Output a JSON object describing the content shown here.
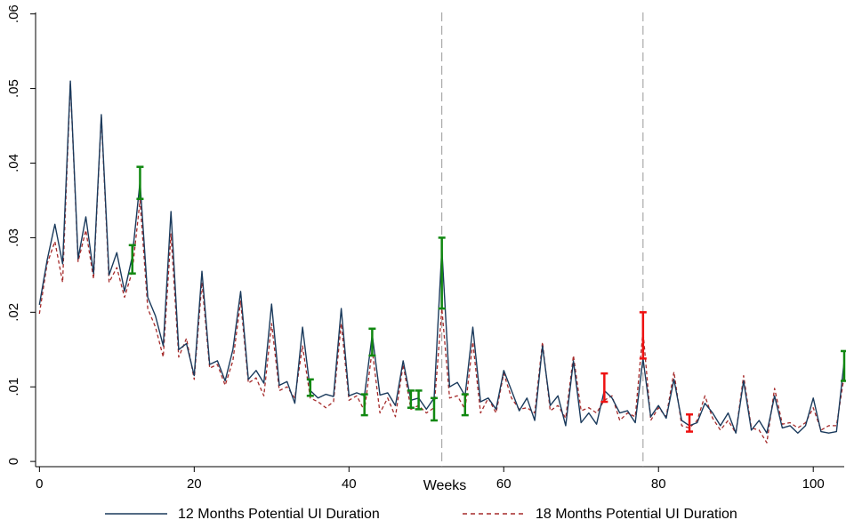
{
  "chart_data": {
    "type": "line",
    "xlabel": "Weeks",
    "ylabel": "",
    "xlim": [
      -0.5,
      104
    ],
    "ylim": [
      -0.0007,
      0.0602
    ],
    "x_ticks": [
      0,
      20,
      40,
      60,
      80,
      100
    ],
    "x_tick_labels": [
      "0",
      "20",
      "40",
      "60",
      "80",
      "100"
    ],
    "y_ticks": [
      0,
      0.01,
      0.02,
      0.03,
      0.04,
      0.05,
      0.06
    ],
    "y_tick_labels": [
      "0",
      ".01",
      ".02",
      ".03",
      ".04",
      ".05",
      ".06"
    ],
    "reference_lines_x": [
      52,
      78
    ],
    "grid": false,
    "legend_position": "bottom",
    "series": [
      {
        "name": "12 Months Potential UI Duration",
        "color": "#1a3a5c",
        "style": "solid",
        "x": [
          0,
          1,
          2,
          3,
          4,
          5,
          6,
          7,
          8,
          9,
          10,
          11,
          12,
          13,
          14,
          15,
          16,
          17,
          18,
          19,
          20,
          21,
          22,
          23,
          24,
          25,
          26,
          27,
          28,
          29,
          30,
          31,
          32,
          33,
          34,
          35,
          36,
          37,
          38,
          39,
          40,
          41,
          42,
          43,
          44,
          45,
          46,
          47,
          48,
          49,
          50,
          51,
          52,
          53,
          54,
          55,
          56,
          57,
          58,
          59,
          60,
          61,
          62,
          63,
          64,
          65,
          66,
          67,
          68,
          69,
          70,
          71,
          72,
          73,
          74,
          75,
          76,
          77,
          78,
          79,
          80,
          81,
          82,
          83,
          84,
          85,
          86,
          87,
          88,
          89,
          90,
          91,
          92,
          93,
          94,
          95,
          96,
          97,
          98,
          99,
          100,
          101,
          102,
          103,
          104
        ],
        "y": [
          0.021,
          0.027,
          0.0318,
          0.0265,
          0.051,
          0.0272,
          0.0328,
          0.0252,
          0.0465,
          0.025,
          0.028,
          0.0228,
          0.0275,
          0.0375,
          0.022,
          0.0195,
          0.0155,
          0.0335,
          0.015,
          0.0158,
          0.0115,
          0.0255,
          0.013,
          0.0135,
          0.0108,
          0.015,
          0.0228,
          0.011,
          0.0122,
          0.0105,
          0.0211,
          0.0102,
          0.0107,
          0.0078,
          0.018,
          0.0095,
          0.0085,
          0.009,
          0.0087,
          0.0205,
          0.0088,
          0.0092,
          0.0088,
          0.017,
          0.0089,
          0.0092,
          0.0075,
          0.0135,
          0.0082,
          0.0085,
          0.007,
          0.0085,
          0.0285,
          0.01,
          0.0106,
          0.0088,
          0.018,
          0.008,
          0.0085,
          0.007,
          0.0122,
          0.0095,
          0.0068,
          0.0085,
          0.0055,
          0.0155,
          0.0075,
          0.0088,
          0.0048,
          0.0135,
          0.0052,
          0.0065,
          0.005,
          0.0095,
          0.0085,
          0.0065,
          0.0068,
          0.0052,
          0.0138,
          0.006,
          0.0075,
          0.0058,
          0.011,
          0.0055,
          0.0048,
          0.0052,
          0.0078,
          0.0065,
          0.0048,
          0.0065,
          0.0038,
          0.0108,
          0.0042,
          0.0055,
          0.0038,
          0.0088,
          0.0045,
          0.0048,
          0.0038,
          0.0048,
          0.0085,
          0.004,
          0.0038,
          0.004,
          0.0135
        ]
      },
      {
        "name": "18 Months Potential UI Duration",
        "color": "#a52a2a",
        "style": "dashed",
        "x": [
          0,
          1,
          2,
          3,
          4,
          5,
          6,
          7,
          8,
          9,
          10,
          11,
          12,
          13,
          14,
          15,
          16,
          17,
          18,
          19,
          20,
          21,
          22,
          23,
          24,
          25,
          26,
          27,
          28,
          29,
          30,
          31,
          32,
          33,
          34,
          35,
          36,
          37,
          38,
          39,
          40,
          41,
          42,
          43,
          44,
          45,
          46,
          47,
          48,
          49,
          50,
          51,
          52,
          53,
          54,
          55,
          56,
          57,
          58,
          59,
          60,
          61,
          62,
          63,
          64,
          65,
          66,
          67,
          68,
          69,
          70,
          71,
          72,
          73,
          74,
          75,
          76,
          77,
          78,
          79,
          80,
          81,
          82,
          83,
          84,
          85,
          86,
          87,
          88,
          89,
          90,
          91,
          92,
          93,
          94,
          95,
          96,
          97,
          98,
          99,
          100,
          101,
          102,
          103,
          104
        ],
        "y": [
          0.0198,
          0.0265,
          0.0295,
          0.024,
          0.0508,
          0.0268,
          0.031,
          0.0245,
          0.0463,
          0.024,
          0.026,
          0.022,
          0.0255,
          0.035,
          0.0205,
          0.018,
          0.014,
          0.0305,
          0.014,
          0.0165,
          0.011,
          0.024,
          0.0125,
          0.013,
          0.0102,
          0.0135,
          0.0215,
          0.0105,
          0.0112,
          0.0088,
          0.0185,
          0.0095,
          0.01,
          0.0085,
          0.0155,
          0.0085,
          0.008,
          0.0072,
          0.008,
          0.0185,
          0.0082,
          0.0088,
          0.0068,
          0.015,
          0.0065,
          0.0085,
          0.006,
          0.013,
          0.007,
          0.0075,
          0.0065,
          0.0072,
          0.0205,
          0.0085,
          0.0088,
          0.007,
          0.016,
          0.0065,
          0.0085,
          0.0065,
          0.0118,
          0.0085,
          0.007,
          0.0072,
          0.0065,
          0.016,
          0.0068,
          0.0075,
          0.0058,
          0.0142,
          0.0068,
          0.0072,
          0.0065,
          0.0082,
          0.0088,
          0.0055,
          0.0065,
          0.006,
          0.0175,
          0.0055,
          0.0072,
          0.006,
          0.012,
          0.0048,
          0.0045,
          0.0055,
          0.0088,
          0.0058,
          0.0042,
          0.0055,
          0.0038,
          0.0115,
          0.0045,
          0.0042,
          0.0025,
          0.0098,
          0.005,
          0.0052,
          0.0045,
          0.0052,
          0.0072,
          0.0042,
          0.0048,
          0.0048,
          0.0115
        ]
      }
    ],
    "error_bars": [
      {
        "x": 12,
        "low": 0.0252,
        "high": 0.029,
        "color": "#118811"
      },
      {
        "x": 13,
        "low": 0.0352,
        "high": 0.0395,
        "color": "#118811"
      },
      {
        "x": 35,
        "low": 0.0088,
        "high": 0.011,
        "color": "#118811"
      },
      {
        "x": 42,
        "low": 0.0062,
        "high": 0.009,
        "color": "#118811"
      },
      {
        "x": 43,
        "low": 0.0142,
        "high": 0.0178,
        "color": "#118811"
      },
      {
        "x": 48,
        "low": 0.0072,
        "high": 0.0095,
        "color": "#118811"
      },
      {
        "x": 49,
        "low": 0.007,
        "high": 0.0095,
        "color": "#118811"
      },
      {
        "x": 51,
        "low": 0.0055,
        "high": 0.0085,
        "color": "#118811"
      },
      {
        "x": 52,
        "low": 0.0205,
        "high": 0.03,
        "color": "#118811"
      },
      {
        "x": 55,
        "low": 0.0062,
        "high": 0.009,
        "color": "#118811"
      },
      {
        "x": 73,
        "low": 0.008,
        "high": 0.0118,
        "color": "#ee1111"
      },
      {
        "x": 78,
        "low": 0.0138,
        "high": 0.02,
        "color": "#ee1111"
      },
      {
        "x": 84,
        "low": 0.004,
        "high": 0.0063,
        "color": "#ee1111"
      },
      {
        "x": 104,
        "low": 0.0108,
        "high": 0.0148,
        "color": "#118811"
      }
    ]
  }
}
